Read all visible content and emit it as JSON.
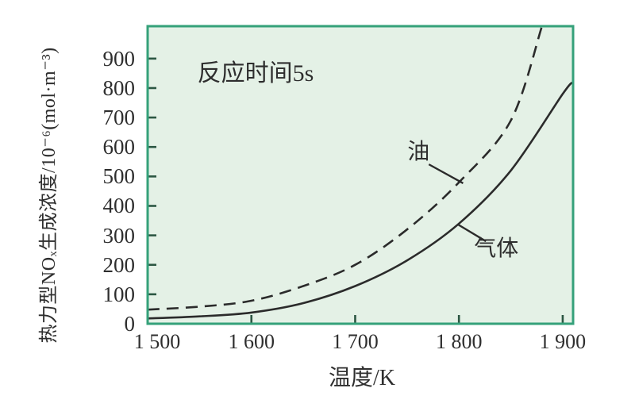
{
  "page": {
    "background": "#ffffff"
  },
  "chart_data": {
    "type": "line",
    "annotation": "反应时间5s",
    "xlabel": "温度/K",
    "ylabel": "热力型NOₓ生成浓度/10⁻⁶(mol·m⁻³)",
    "x_range": [
      1500,
      1910
    ],
    "y_range": [
      0,
      1010
    ],
    "x_ticks": [
      1500,
      1600,
      1700,
      1800,
      1900
    ],
    "x_tick_labels": [
      "1 500",
      "1 600",
      "1 700",
      "1 800",
      "1 900"
    ],
    "y_ticks": [
      0,
      100,
      200,
      300,
      400,
      500,
      600,
      700,
      800,
      900
    ],
    "y_tick_labels": [
      "0",
      "100",
      "200",
      "300",
      "400",
      "500",
      "600",
      "700",
      "800",
      "900"
    ],
    "grid": false,
    "legend_position": "inline-pointer-labels",
    "series": [
      {
        "name": "气体",
        "line_style": "solid",
        "points": [
          [
            1500,
            18
          ],
          [
            1550,
            25
          ],
          [
            1600,
            38
          ],
          [
            1650,
            70
          ],
          [
            1700,
            128
          ],
          [
            1750,
            215
          ],
          [
            1800,
            340
          ],
          [
            1850,
            520
          ],
          [
            1900,
            780
          ],
          [
            1910,
            820
          ]
        ]
      },
      {
        "name": "油",
        "line_style": "dashed",
        "points": [
          [
            1500,
            48
          ],
          [
            1550,
            58
          ],
          [
            1600,
            78
          ],
          [
            1650,
            128
          ],
          [
            1700,
            200
          ],
          [
            1750,
            320
          ],
          [
            1800,
            480
          ],
          [
            1850,
            690
          ],
          [
            1880,
            1010
          ]
        ]
      }
    ],
    "pointer_labels": [
      {
        "series_index": 1,
        "text": "油",
        "label_at": [
          1761,
          582
        ],
        "leader_from": [
          1771,
          541
        ],
        "leader_to": [
          1804,
          477
        ]
      },
      {
        "series_index": 0,
        "text": "气体",
        "label_at": [
          1836,
          253
        ],
        "leader_from": [
          1799,
          337
        ],
        "leader_to": [
          1826,
          280
        ]
      }
    ],
    "annotation_at": [
      1604,
      873
    ],
    "colors": {
      "plot_background": "#e4f1e6",
      "plot_border": "#35a17a",
      "curve": "#2b2b2b",
      "tick": "#2c5743",
      "text": "#2e2e2e",
      "page_background": "#ffffff"
    }
  }
}
